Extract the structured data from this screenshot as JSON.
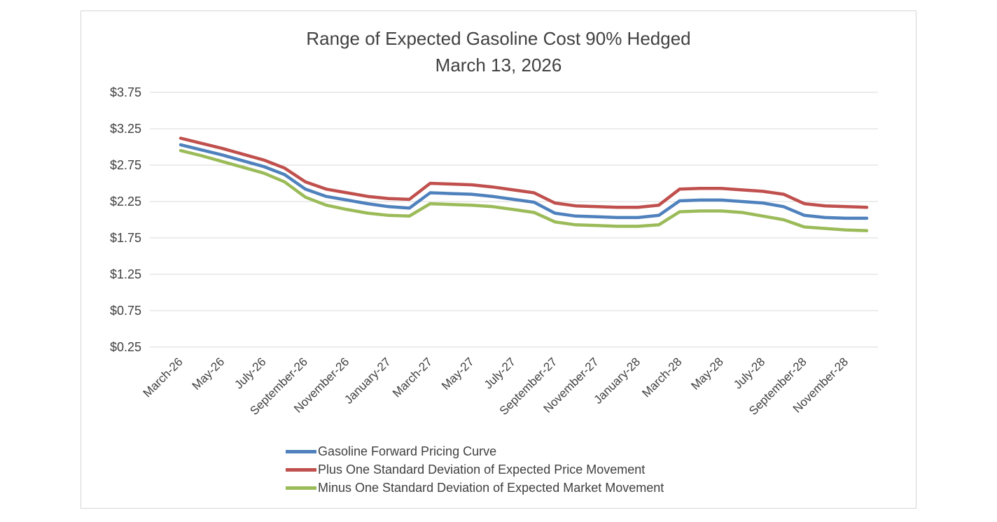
{
  "title": {
    "line1": "Range of Expected Gasoline Cost 90% Hedged",
    "line2": "March 13, 2026"
  },
  "colors": {
    "forward": "#4f81bd",
    "plus_sd": "#c0504d",
    "minus_sd": "#9bbb59",
    "gridline": "#d9d9d9",
    "tick_text": "#404040",
    "title_text": "#404040"
  },
  "chart_data": {
    "type": "line",
    "title": "Range of Expected Gasoline Cost 90% Hedged",
    "subtitle": "March 13, 2026",
    "xlabel": "",
    "ylabel": "",
    "ylim": [
      0.25,
      3.75
    ],
    "grid": true,
    "legend_position": "bottom-left",
    "y_ticks": [
      {
        "value": 3.75,
        "label": "$3.75"
      },
      {
        "value": 3.25,
        "label": "$3.25"
      },
      {
        "value": 2.75,
        "label": "$2.75"
      },
      {
        "value": 2.25,
        "label": "$2.25"
      },
      {
        "value": 1.75,
        "label": "$1.75"
      },
      {
        "value": 1.25,
        "label": "$1.25"
      },
      {
        "value": 0.75,
        "label": "$0.75"
      },
      {
        "value": 0.25,
        "label": "$0.25"
      }
    ],
    "x": [
      "March-26",
      "April-26",
      "May-26",
      "June-26",
      "July-26",
      "August-26",
      "September-26",
      "October-26",
      "November-26",
      "December-26",
      "January-27",
      "February-27",
      "March-27",
      "April-27",
      "May-27",
      "June-27",
      "July-27",
      "August-27",
      "September-27",
      "October-27",
      "November-27",
      "December-27",
      "January-28",
      "February-28",
      "March-28",
      "April-28",
      "May-28",
      "June-28",
      "July-28",
      "August-28",
      "September-28",
      "October-28",
      "November-28",
      "December-28"
    ],
    "x_tick_every": 2,
    "x_tick_labels": [
      "March-26",
      "May-26",
      "July-26",
      "September-26",
      "November-26",
      "January-27",
      "March-27",
      "May-27",
      "July-27",
      "September-27",
      "November-27",
      "January-28",
      "March-28",
      "May-28",
      "July-28",
      "September-28",
      "November-28"
    ],
    "series": [
      {
        "name": "Gasoline Forward Pricing Curve",
        "color": "#4f81bd",
        "values": [
          3.03,
          2.96,
          2.89,
          2.81,
          2.73,
          2.62,
          2.42,
          2.32,
          2.27,
          2.22,
          2.18,
          2.16,
          2.37,
          2.36,
          2.35,
          2.32,
          2.28,
          2.24,
          2.09,
          2.05,
          2.04,
          2.03,
          2.03,
          2.06,
          2.26,
          2.27,
          2.27,
          2.25,
          2.23,
          2.18,
          2.06,
          2.03,
          2.02,
          2.02
        ]
      },
      {
        "name": "Plus One Standard Deviation of Expected Price Movement",
        "color": "#c0504d",
        "values": [
          3.12,
          3.05,
          2.98,
          2.9,
          2.82,
          2.71,
          2.52,
          2.42,
          2.37,
          2.32,
          2.29,
          2.28,
          2.5,
          2.49,
          2.48,
          2.45,
          2.41,
          2.37,
          2.23,
          2.19,
          2.18,
          2.17,
          2.17,
          2.2,
          2.42,
          2.43,
          2.43,
          2.41,
          2.39,
          2.35,
          2.22,
          2.19,
          2.18,
          2.17
        ]
      },
      {
        "name": "Minus One Standard Deviation of Expected Market Movement",
        "color": "#9bbb59",
        "values": [
          2.95,
          2.88,
          2.8,
          2.72,
          2.64,
          2.52,
          2.31,
          2.2,
          2.14,
          2.09,
          2.06,
          2.05,
          2.22,
          2.21,
          2.2,
          2.18,
          2.14,
          2.1,
          1.97,
          1.93,
          1.92,
          1.91,
          1.91,
          1.93,
          2.11,
          2.12,
          2.12,
          2.1,
          2.05,
          2.0,
          1.9,
          1.88,
          1.86,
          1.85
        ]
      }
    ]
  }
}
